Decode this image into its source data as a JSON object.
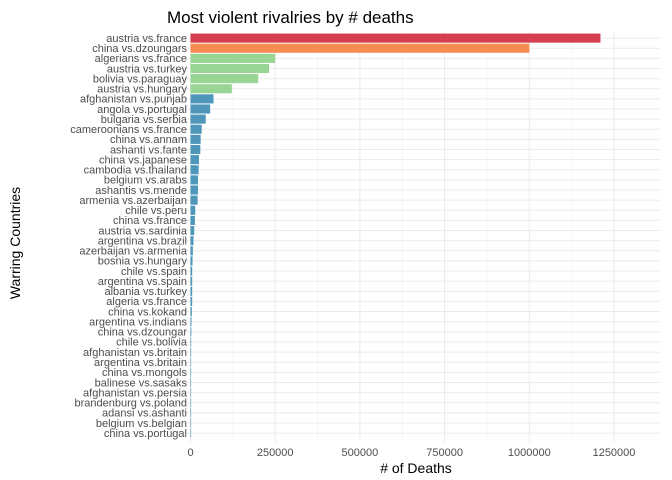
{
  "chart_data": {
    "type": "bar",
    "orientation": "horizontal",
    "title": "Most violent rivalries by # deaths",
    "xlabel": "# of Deaths",
    "ylabel": "Warring Countries",
    "xlim": [
      0,
      1250000
    ],
    "xticks": [
      0,
      250000,
      500000,
      750000,
      1000000,
      1250000
    ],
    "xtick_labels": [
      "0",
      "250000",
      "500000",
      "750000",
      "1000000",
      "1250000"
    ],
    "grid": true,
    "legend": "none",
    "categories": [
      "austria vs.france",
      "china vs.dzoungars",
      "algerians vs.france",
      "austria vs.turkey",
      "bolivia vs.paraguay",
      "austria vs.hungary",
      "afghanistan vs.punjab",
      "angola vs.portugal",
      "bulgaria vs.serbia",
      "cameroonians vs.france",
      "china vs.annam",
      "ashanti vs.fante",
      "china vs.japanese",
      "cambodia vs.thailand",
      "belgium vs.arabs",
      "ashantis vs.mende",
      "armenia vs.azerbaijan",
      "chile vs.peru",
      "china vs.france",
      "austria vs.sardinia",
      "argentina vs.brazil",
      "azerbaijan vs.armenia",
      "bosnia vs.hungary",
      "chile vs.spain",
      "argentina vs.spain",
      "albania vs.turkey",
      "algeria vs.france",
      "china vs.kokand",
      "argentina vs.indians",
      "china vs.dzoungar",
      "chile vs.bolivia",
      "afghanistan vs.britain",
      "argentina vs.britain",
      "china vs.mongols",
      "balinese vs.sasaks",
      "afghanistan vs.persia",
      "brandenburg vs.poland",
      "adansi vs.ashanti",
      "belgium vs.belgian",
      "china vs.portugal"
    ],
    "values": [
      1210000,
      1000000,
      250000,
      232000,
      200000,
      122000,
      68000,
      58000,
      45000,
      33000,
      30000,
      29000,
      25000,
      24000,
      22000,
      22000,
      21000,
      14000,
      13000,
      11000,
      9000,
      7000,
      6000,
      5000,
      5000,
      5000,
      5000,
      4000,
      3000,
      2500,
      2000,
      2000,
      1800,
      1500,
      1500,
      1500,
      1000,
      800,
      500,
      300
    ],
    "colors": [
      "#d53e4f",
      "#f88d52",
      "#99d594",
      "#99d594",
      "#99d594",
      "#99d594",
      "#4e97ba",
      "#4e97ba",
      "#4e97ba",
      "#4e97ba",
      "#4e97ba",
      "#4e97ba",
      "#4e97ba",
      "#4e97ba",
      "#4e97ba",
      "#4e97ba",
      "#4e97ba",
      "#4e97ba",
      "#4e97ba",
      "#4e97ba",
      "#4e97ba",
      "#4e97ba",
      "#4e97ba",
      "#4e97ba",
      "#4e97ba",
      "#4e97ba",
      "#4e97ba",
      "#4e97ba",
      "#4e97ba",
      "#4e97ba",
      "#4e97ba",
      "#4e97ba",
      "#4e97ba",
      "#4e97ba",
      "#4e97ba",
      "#4e97ba",
      "#4e97ba",
      "#4e97ba",
      "#4e97ba",
      "#4e97ba"
    ]
  }
}
